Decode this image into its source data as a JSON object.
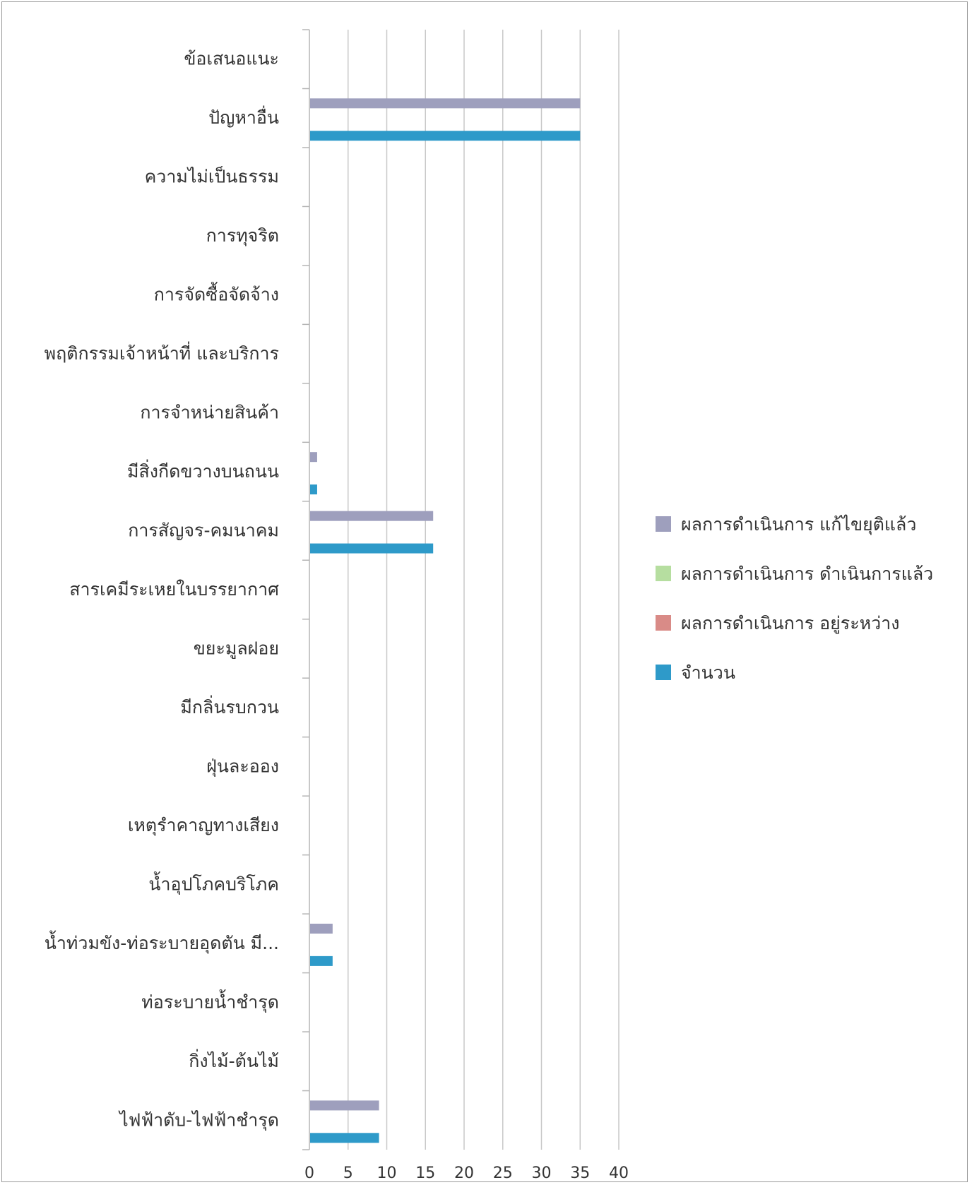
{
  "chart_data": {
    "type": "bar",
    "orientation": "horizontal",
    "categories": [
      "ข้อเสนอแนะ",
      "ปัญหาอื่น",
      "ความไม่เป็นธรรม",
      "การทุจริต",
      "การจัดซื้อจัดจ้าง",
      "พฤติกรรมเจ้าหน้าที่ และบริการ",
      "การจำหน่ายสินค้า",
      "มีสิ่งกีดขวางบนถนน",
      "การสัญจร-คมนาคม",
      "สารเคมีระเหยในบรรยากาศ",
      "ขยะมูลฝอย",
      "มีกลิ่นรบกวน",
      "ฝุ่นละออง",
      "เหตุรำคาญทางเสียง",
      "น้ำอุปโภคบริโภค",
      "น้ำท่วมขัง-ท่อระบายอุดตัน มี...",
      "ท่อระบายน้ำชำรุด",
      "กิ่งไม้-ต้นไม้",
      "ไฟฟ้าดับ-ไฟฟ้าชำรุด"
    ],
    "series": [
      {
        "name": "จำนวน",
        "color": "#2e9ac9",
        "values": [
          0,
          35,
          0,
          0,
          0,
          0,
          0,
          1,
          16,
          0,
          0,
          0,
          0,
          0,
          0,
          3,
          0,
          0,
          9
        ]
      },
      {
        "name": "ผลการดำเนินการ อยู่ระหว่าง",
        "color": "#d98b87",
        "values": [
          0,
          0,
          0,
          0,
          0,
          0,
          0,
          0,
          0,
          0,
          0,
          0,
          0,
          0,
          0,
          0,
          0,
          0,
          0
        ]
      },
      {
        "name": "ผลการดำเนินการ ดำเนินการแล้ว",
        "color": "#b6dea0",
        "values": [
          0,
          0,
          0,
          0,
          0,
          0,
          0,
          0,
          0,
          0,
          0,
          0,
          0,
          0,
          0,
          0,
          0,
          0,
          0
        ]
      },
      {
        "name": "ผลการดำเนินการ แก้ไขยุติแล้ว",
        "color": "#9e9fbd",
        "values": [
          0,
          35,
          0,
          0,
          0,
          0,
          0,
          1,
          16,
          0,
          0,
          0,
          0,
          0,
          0,
          3,
          0,
          0,
          9
        ]
      }
    ],
    "legend_order": [
      3,
      2,
      1,
      0
    ],
    "xlim": [
      0,
      40
    ],
    "xticks": [
      0,
      5,
      10,
      15,
      20,
      25,
      30,
      35,
      40
    ],
    "grid": true,
    "legend_position": "right"
  }
}
